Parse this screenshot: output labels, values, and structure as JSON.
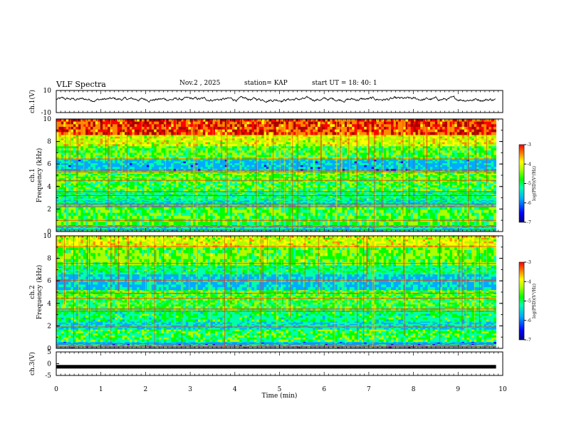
{
  "header": {
    "title": "VLF Spectra",
    "date": "Nov.2 , 2025",
    "station": "station= KAP",
    "start_ut": "start UT = 18: 40: 1"
  },
  "chart_data": [
    {
      "type": "line",
      "name": "ch1-waveform",
      "ylabel": "ch.1(V)",
      "ylim": [
        -10,
        10
      ],
      "yticks": [
        "10",
        "-10"
      ],
      "xlim": [
        0,
        10
      ],
      "mean": 2,
      "amplitude": 3.5
    },
    {
      "type": "heatmap",
      "name": "ch1-spectrogram",
      "title": "ch.1",
      "ylabel": "Frequency (kHz)",
      "ylim": [
        0,
        10
      ],
      "yticks": [
        "0",
        "2",
        "4",
        "6",
        "8",
        "10"
      ],
      "colorbar": {
        "label": "log(PSD)(V²/Hz)",
        "range": [
          -7,
          -3
        ],
        "ticks": [
          "-3",
          "-4",
          "-5",
          "-6",
          "-7"
        ]
      },
      "bands": [
        {
          "f0": 0,
          "f1": 0.6,
          "v": -5.6
        },
        {
          "f0": 0.6,
          "f1": 2.2,
          "v": -5.0
        },
        {
          "f0": 2.2,
          "f1": 2.8,
          "v": -5.6
        },
        {
          "f0": 2.8,
          "f1": 3.6,
          "v": -5.3
        },
        {
          "f0": 3.6,
          "f1": 4.6,
          "v": -5.0
        },
        {
          "f0": 4.6,
          "f1": 5.4,
          "v": -4.8
        },
        {
          "f0": 5.4,
          "f1": 6.4,
          "v": -6.0
        },
        {
          "f0": 6.4,
          "f1": 7.6,
          "v": -4.9
        },
        {
          "f0": 7.6,
          "f1": 8.6,
          "v": -4.3
        },
        {
          "f0": 8.6,
          "f1": 10,
          "v": -3.4
        }
      ],
      "lines_khz": [
        0.15,
        0.45,
        1.0,
        2.2,
        2.45,
        3.2,
        3.55,
        4.55,
        5.3,
        5.45,
        6.45
      ]
    },
    {
      "type": "heatmap",
      "name": "ch2-spectrogram",
      "title": "ch.2",
      "ylabel": "Frequency (kHz)",
      "ylim": [
        0,
        10
      ],
      "yticks": [
        "0",
        "2",
        "4",
        "6",
        "8",
        "10"
      ],
      "colorbar": {
        "label": "log(PSD)(V²/Hz)",
        "range": [
          -7,
          -3
        ],
        "ticks": [
          "-3",
          "-4",
          "-5",
          "-6",
          "-7"
        ]
      },
      "bands": [
        {
          "f0": 0,
          "f1": 0.6,
          "v": -6.0
        },
        {
          "f0": 0.6,
          "f1": 1.7,
          "v": -5.1
        },
        {
          "f0": 1.7,
          "f1": 2.4,
          "v": -5.7
        },
        {
          "f0": 2.4,
          "f1": 3.4,
          "v": -5.3
        },
        {
          "f0": 3.4,
          "f1": 4.4,
          "v": -5.0
        },
        {
          "f0": 4.4,
          "f1": 5.2,
          "v": -4.9
        },
        {
          "f0": 5.2,
          "f1": 6.6,
          "v": -5.9
        },
        {
          "f0": 6.6,
          "f1": 7.4,
          "v": -5.3
        },
        {
          "f0": 7.4,
          "f1": 9.0,
          "v": -4.8
        },
        {
          "f0": 9.0,
          "f1": 10,
          "v": -4.3
        }
      ],
      "lines_khz": [
        0.15,
        0.4,
        1.9,
        3.3,
        3.5,
        4.45,
        4.9,
        6.05,
        7.55,
        9.05
      ]
    },
    {
      "type": "line",
      "name": "ch3-waveform",
      "ylabel": "ch.3(V)",
      "ylim": [
        -5,
        5
      ],
      "yticks": [
        "5",
        "0",
        "-5"
      ],
      "xlim": [
        0,
        10
      ],
      "level": -1.3
    }
  ],
  "x_axis": {
    "label": "Time (min)",
    "ticks": [
      "0",
      "1",
      "2",
      "3",
      "4",
      "5",
      "6",
      "7",
      "8",
      "9",
      "10"
    ],
    "data_end": 9.85
  },
  "colors": {
    "colormap": [
      "#000080",
      "#0000ff",
      "#00aaff",
      "#00ffaa",
      "#00ff00",
      "#aaff00",
      "#ffff00",
      "#ff8800",
      "#ff0000",
      "#aa0000"
    ]
  }
}
